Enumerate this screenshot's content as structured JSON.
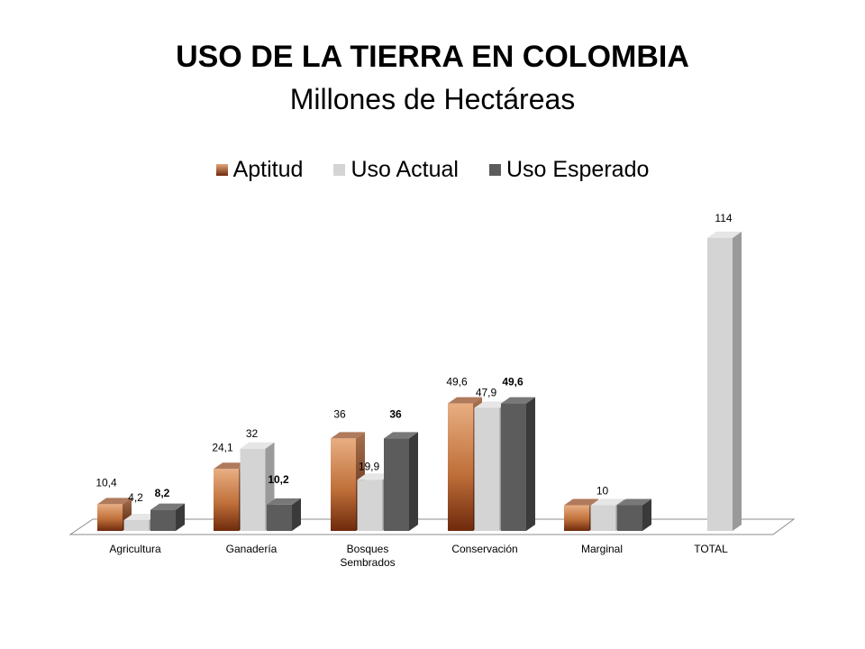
{
  "title": "USO DE LA TIERRA EN COLOMBIA",
  "subtitle": "Millones de Hectáreas",
  "colors": {
    "aptitud_light": "#e3a679",
    "aptitud_dark": "#6e2a0c",
    "uso_actual": "#d4d4d4",
    "uso_esperado": "#5c5c5c"
  },
  "chart_data": {
    "type": "bar",
    "title": "USO DE LA TIERRA EN COLOMBIA",
    "subtitle": "Millones de Hectáreas",
    "categories": [
      "Agricultura",
      "Ganadería",
      "Bosques Sembrados",
      "Conservación",
      "Marginal",
      "TOTAL"
    ],
    "category_lines": [
      [
        "Agricultura"
      ],
      [
        "Ganadería"
      ],
      [
        "Bosques",
        "Sembrados"
      ],
      [
        "Conservación"
      ],
      [
        "Marginal"
      ],
      [
        "TOTAL"
      ]
    ],
    "series": [
      {
        "name": "Aptitud",
        "values": [
          10.4,
          24.1,
          36,
          49.6,
          10,
          null
        ],
        "labels": [
          "10,4",
          "24,1",
          "36",
          "49,6",
          "",
          ""
        ],
        "bold": false
      },
      {
        "name": "Uso Actual",
        "values": [
          4.2,
          32,
          19.9,
          47.9,
          10,
          114
        ],
        "labels": [
          "4,2",
          "32",
          "19,9",
          "47,9",
          "10",
          "114"
        ],
        "bold": false
      },
      {
        "name": "Uso Esperado",
        "values": [
          8.2,
          10.2,
          36,
          49.6,
          10,
          null
        ],
        "labels": [
          "8,2",
          "10,2",
          "36",
          "49,6",
          "",
          ""
        ],
        "bold": true
      }
    ],
    "ylim": [
      0,
      114
    ],
    "grid": false,
    "legend": "top"
  }
}
